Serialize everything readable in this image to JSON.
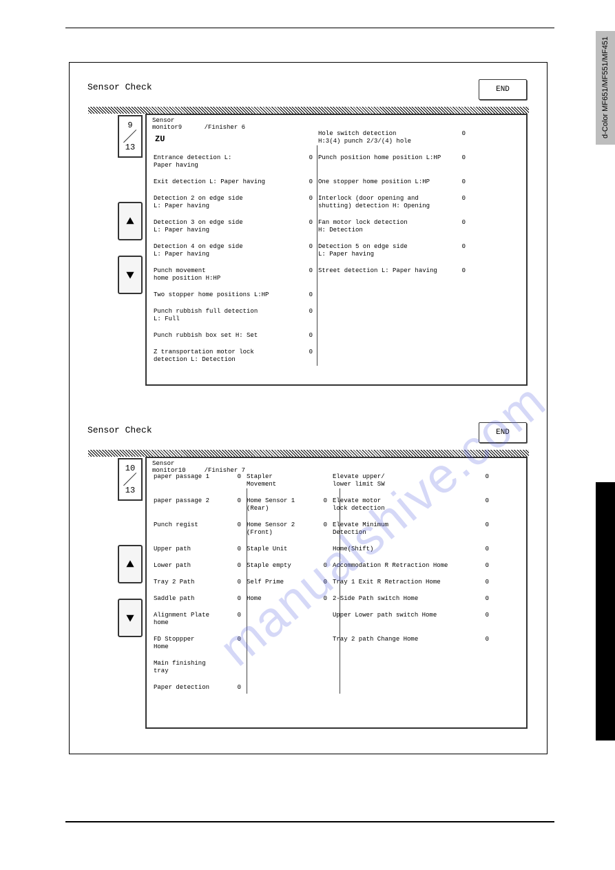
{
  "side_tab": "d-Color MF651/MF551/MF451",
  "watermark": "manualshive.com",
  "panel1": {
    "title": "Sensor Check",
    "end": "END",
    "header": "Sensor\nmonitor9      /Finisher 6",
    "counter_top": "9",
    "counter_bottom": "13",
    "zu": "ZU",
    "rows": [
      {
        "l": "",
        "lv": "",
        "r": "Hole switch detection\nH:3(4) punch 2/3/(4) hole",
        "rv": "0"
      },
      {
        "l": "Entrance detection L:\nPaper having",
        "lv": "0",
        "r": "Punch position home position L:HP",
        "rv": "0"
      },
      {
        "l": "Exit detection L: Paper having",
        "lv": "0",
        "r": "One stopper home position L:HP",
        "rv": "0"
      },
      {
        "l": "Detection 2 on edge side\nL: Paper having",
        "lv": "0",
        "r": "Interlock (door opening and\nshutting) detection H: Opening",
        "rv": "0"
      },
      {
        "l": "Detection 3 on edge side\nL: Paper having",
        "lv": "0",
        "r": "Fan motor lock detection\nH: Detection",
        "rv": "0"
      },
      {
        "l": "Detection 4 on edge side\nL: Paper having",
        "lv": "0",
        "r": "Detection 5 on edge side\nL: Paper having",
        "rv": "0"
      },
      {
        "l": "Punch movement\nhome position H:HP",
        "lv": "0",
        "r": "Street detection L: Paper having",
        "rv": "0"
      },
      {
        "l": "Two stopper home positions L:HP",
        "lv": "0",
        "r": "",
        "rv": ""
      },
      {
        "l": "Punch rubbish full detection\nL: Full",
        "lv": "0",
        "r": "",
        "rv": ""
      },
      {
        "l": "Punch rubbish box set H: Set",
        "lv": "0",
        "r": "",
        "rv": ""
      },
      {
        "l": "Z transportation motor lock\ndetection L: Detection",
        "lv": "0",
        "r": "",
        "rv": ""
      }
    ]
  },
  "panel2": {
    "title": "Sensor Check",
    "end": "END",
    "header": "Sensor\nmonitor10     /Finisher 7",
    "counter_top": "10",
    "counter_bottom": "13",
    "rows": [
      {
        "a": "paper passage 1",
        "av": "0",
        "b": "Stapler\nMovement",
        "bv": "",
        "c": "Elevate upper/\nlower limit SW",
        "cv": "0"
      },
      {
        "a": "paper passage 2",
        "av": "0",
        "b": "Home Sensor 1\n(Rear)",
        "bv": "0",
        "c": "Elevate motor\nlock detection",
        "cv": "0"
      },
      {
        "a": "Punch regist",
        "av": "0",
        "b": "Home Sensor 2\n(Front)",
        "bv": "0",
        "c": "Elevate Minimum\nDetection",
        "cv": "0"
      },
      {
        "a": "Upper path",
        "av": "0",
        "b": "Staple Unit",
        "bv": "",
        "c": "Home(Shift)",
        "cv": "0"
      },
      {
        "a": "Lower path",
        "av": "0",
        "b": "Staple empty",
        "bv": "0",
        "c": "Accommodation R Retraction Home",
        "cv": "0"
      },
      {
        "a": "Tray 2 Path",
        "av": "0",
        "b": "Self Prime",
        "bv": "0",
        "c": "Tray 1 Exit R Retraction Home",
        "cv": "0"
      },
      {
        "a": "Saddle path",
        "av": "0",
        "b": "Home",
        "bv": "0",
        "c": "2-Side Path switch Home",
        "cv": "0"
      },
      {
        "a": "Alignment Plate\nhome",
        "av": "0",
        "b": "",
        "bv": "",
        "c": "Upper Lower path switch Home",
        "cv": "0"
      },
      {
        "a": "FD Stoppper\nHome",
        "av": "0",
        "b": "",
        "bv": "",
        "c": "Tray 2 path Change Home",
        "cv": "0"
      },
      {
        "a": "Main finishing\ntray",
        "av": "",
        "b": "",
        "bv": "",
        "c": "",
        "cv": ""
      },
      {
        "a": "Paper detection",
        "av": "0",
        "b": "",
        "bv": "",
        "c": "",
        "cv": ""
      }
    ]
  }
}
